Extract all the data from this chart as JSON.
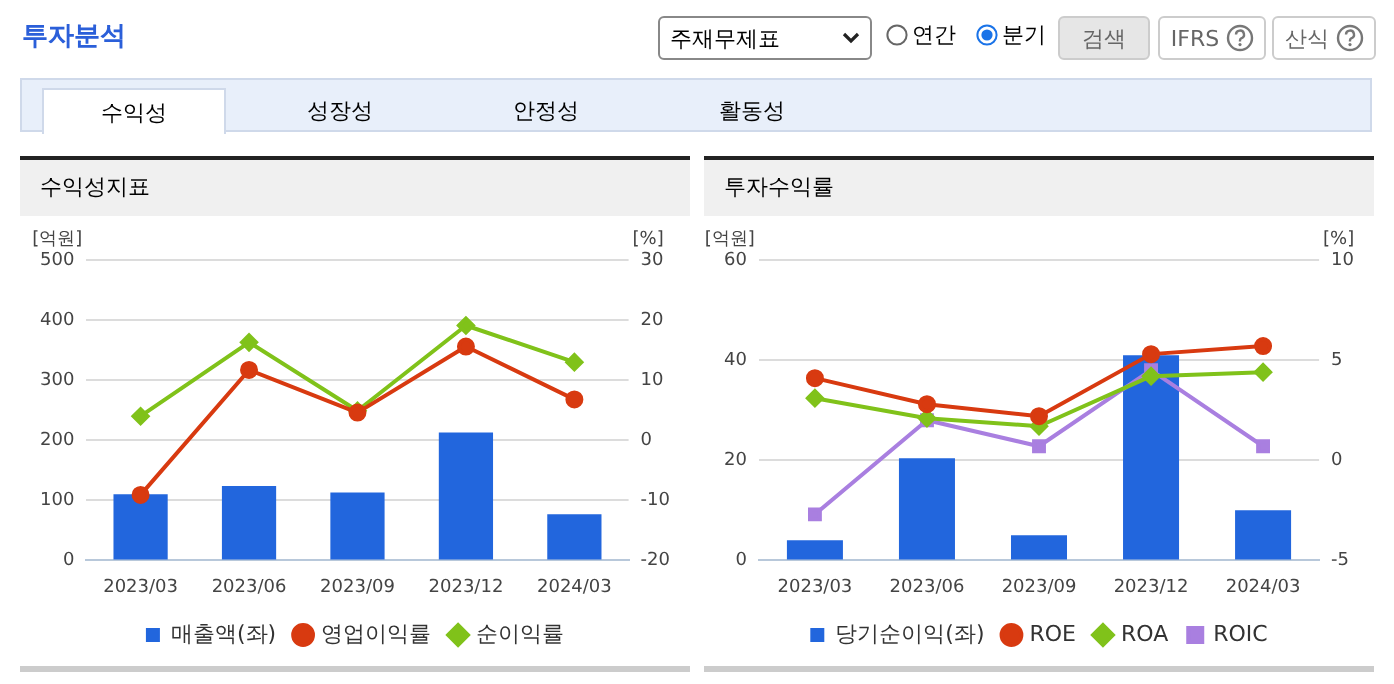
{
  "chart_data": [
    {
      "type": "bar",
      "title": "수익성지표",
      "ylabel": "[억원]",
      "y2label": "[%]",
      "annotations": [
        "투자분석",
        "주재무제표",
        "연간",
        "분기",
        "검색",
        "IFRS",
        "산식",
        "수익성",
        "성장성",
        "안정성",
        "활동성"
      ],
      "categories": [
        "2023/03",
        "2023/06",
        "2023/09",
        "2023/12",
        "2024/03"
      ],
      "series": [
        {
          "name": "매출액(좌)",
          "color": "#2266dd",
          "values": [
            110,
            124,
            113,
            213,
            77
          ]
        },
        {
          "name": "영업이익률",
          "type": "line",
          "axis": "y2",
          "marker": "circle",
          "color": "#d83a10",
          "values": [
            -9.1,
            11.7,
            4.6,
            15.6,
            6.8
          ]
        },
        {
          "name": "순이익률",
          "type": "line",
          "axis": "y2",
          "marker": "diamond",
          "color": "#80c21a",
          "values": [
            4,
            16.3,
            4.9,
            19.1,
            13
          ]
        }
      ],
      "ylim": [
        0,
        500
      ],
      "yticks": [
        0,
        100,
        200,
        300,
        400,
        500
      ],
      "y2lim": [
        -20,
        30
      ],
      "y2ticks": [
        -20,
        -10,
        0,
        10,
        20,
        30
      ],
      "grid": "y",
      "legend": "bottom"
    },
    {
      "type": "bar",
      "title": "투자수익률",
      "ylabel": "[억원]",
      "y2label": "[%]",
      "categories": [
        "2023/03",
        "2023/06",
        "2023/09",
        "2023/12",
        "2024/03"
      ],
      "series": [
        {
          "name": "당기순이익(좌)",
          "color": "#2266dd",
          "values": [
            4,
            20.4,
            5,
            41,
            10
          ]
        },
        {
          "name": "ROE",
          "type": "line",
          "axis": "y2",
          "marker": "circle",
          "color": "#d83a10",
          "values": [
            4.1,
            2.8,
            2.2,
            5.3,
            5.7
          ]
        },
        {
          "name": "ROA",
          "type": "line",
          "axis": "y2",
          "marker": "diamond",
          "color": "#80c21a",
          "values": [
            3.1,
            2.1,
            1.7,
            4.2,
            4.4
          ]
        },
        {
          "name": "ROIC",
          "type": "line",
          "axis": "y2",
          "marker": "square",
          "color": "#a97fe0",
          "values": [
            -2.7,
            2,
            0.7,
            4.5,
            0.7
          ]
        }
      ],
      "ylim": [
        0,
        60
      ],
      "yticks": [
        0,
        20,
        40,
        60
      ],
      "y2lim": [
        -5,
        10
      ],
      "y2ticks": [
        -5,
        0,
        5,
        10
      ],
      "grid": "y",
      "legend": "bottom"
    }
  ]
}
